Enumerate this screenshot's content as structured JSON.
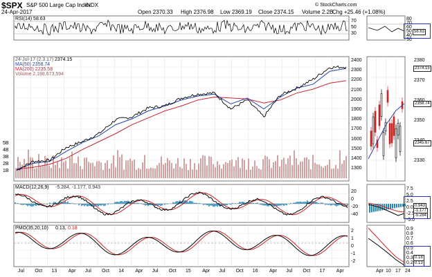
{
  "header": {
    "symbol": "$SPX",
    "name": "S&P 500 Large Cap Index",
    "exchange": "INDX",
    "date": "24-Apr-2017",
    "open": "Open 2370.33",
    "high": "High 2376.98",
    "low": "Low 2369.19",
    "close": "Close 2374.15",
    "volume": "Volume 2.2B",
    "chg": "Chg +25.46 (+1.08%)",
    "credit": "© StockCharts.com"
  },
  "legend": {
    "rsi": "RSI(14) 58.63",
    "price_tag": "24-Jul-17 (2.3.17)",
    "price_value": "2374.15",
    "ma50": "MA(50) 2358.74",
    "ma200": "MA(200) 2235.58",
    "volume": "Volume 2,198,673,594",
    "macd_title": "MACD(12,26,9)",
    "macd_values": "-5.284, -1.177, 0.943",
    "pmo_title": "PMO(35,20,10)",
    "pmo_value1": "0.13,",
    "pmo_value2": "0.18"
  },
  "axes": {
    "rsi_ticks": [
      "70",
      "50",
      "30"
    ],
    "price_ticks": [
      "2400",
      "2300",
      "2200",
      "2100",
      "2000",
      "1900",
      "1800",
      "1700",
      "1600",
      "1500",
      "1400",
      "1300"
    ],
    "volume_ticks": [
      "5B",
      "4B",
      "3B",
      "2B",
      "1B"
    ],
    "macd_ticks": [
      "20",
      "0",
      "-20",
      "-40"
    ],
    "pmo_ticks": [
      "2",
      "1",
      "0",
      "-1",
      "-2"
    ],
    "x_labels": [
      "Jul",
      "Oct",
      "13",
      "Apr",
      "Jul",
      "Oct",
      "14",
      "Apr",
      "Jul",
      "Oct",
      "15",
      "Apr",
      "Jul",
      "Oct",
      "16",
      "Apr",
      "Jul",
      "Oct",
      "17",
      "Apr"
    ],
    "side_rsi_ticks": [
      "80",
      "70",
      "60",
      "50",
      "40",
      "30"
    ],
    "side_price_ticks": [
      "2380",
      "2370",
      "2360",
      "2350",
      "2340",
      "2330"
    ],
    "side_macd_ticks": [
      "7.5",
      "5.0",
      "2.5",
      "0.0",
      "-2.5",
      "-5.0"
    ],
    "side_pmo_ticks": [
      "0.9",
      "0.8",
      "0.7",
      "0.6",
      "0.5",
      "0.4",
      "0.3",
      "0.2"
    ],
    "side_x_labels": [
      "Apr",
      "10",
      "17",
      "24"
    ]
  },
  "side_tags": {
    "rsi": "58.63",
    "price_close": "2374.15",
    "ma50": "2358.74",
    "low": "2345.67",
    "macd1": "0.943",
    "macd2": "-1.177",
    "macd3": "-5.284",
    "pmo1": "0.18",
    "pmo2": "0.13"
  },
  "colors": {
    "price": "#000000",
    "ma50": "#2244aa",
    "ma200": "#cc2233",
    "volume": "#c98a8a",
    "macd_line": "#000000",
    "macd_signal": "#cc2222",
    "macd_hist": "#2288bb",
    "pmo_line": "#000000",
    "pmo_signal": "#cc2222",
    "highlight": "#2233cc"
  },
  "chart_data": {
    "type": "line",
    "title": "$SPX S&P 500 Large Cap Index INDX",
    "x": [
      "2012-06",
      "2012-09",
      "2012-12",
      "2013-03",
      "2013-06",
      "2013-09",
      "2013-12",
      "2014-03",
      "2014-06",
      "2014-09",
      "2014-12",
      "2015-03",
      "2015-06",
      "2015-09",
      "2015-12",
      "2016-02",
      "2016-06",
      "2016-09",
      "2016-12",
      "2017-02",
      "2017-04"
    ],
    "series": [
      {
        "name": "Close",
        "values": [
          1330,
          1420,
          1430,
          1560,
          1620,
          1700,
          1840,
          1870,
          1960,
          1980,
          2060,
          2100,
          2110,
          1950,
          2040,
          1870,
          2090,
          2160,
          2250,
          2370,
          2374
        ]
      },
      {
        "name": "MA(50)",
        "values": [
          1340,
          1400,
          1420,
          1520,
          1610,
          1680,
          1790,
          1850,
          1930,
          1980,
          2040,
          2080,
          2100,
          2000,
          2060,
          1950,
          2070,
          2160,
          2200,
          2330,
          2359
        ]
      },
      {
        "name": "MA(200)",
        "values": [
          1340,
          1360,
          1390,
          1450,
          1540,
          1620,
          1700,
          1790,
          1860,
          1930,
          1980,
          2040,
          2070,
          2060,
          2050,
          2010,
          2040,
          2110,
          2150,
          2210,
          2236
        ]
      }
    ],
    "ylim": [
      1250,
      2450
    ]
  }
}
